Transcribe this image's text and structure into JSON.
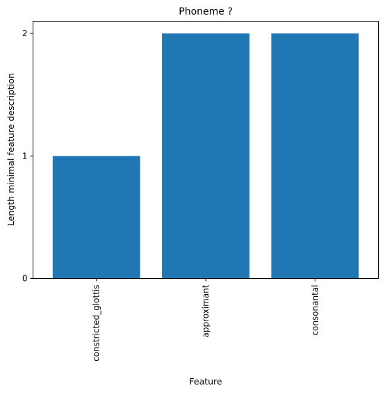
{
  "chart_data": {
    "type": "bar",
    "title": "Phoneme ?",
    "xlabel": "Feature",
    "ylabel": "Length minimal feature description",
    "categories": [
      "constricted_glottis",
      "approximant",
      "consonantal"
    ],
    "values": [
      1,
      2,
      2
    ],
    "ylim": [
      0,
      2.1
    ],
    "yticks": [
      0,
      1,
      2
    ],
    "bar_color": "#1f77b4",
    "grid": false,
    "legend": "none"
  }
}
